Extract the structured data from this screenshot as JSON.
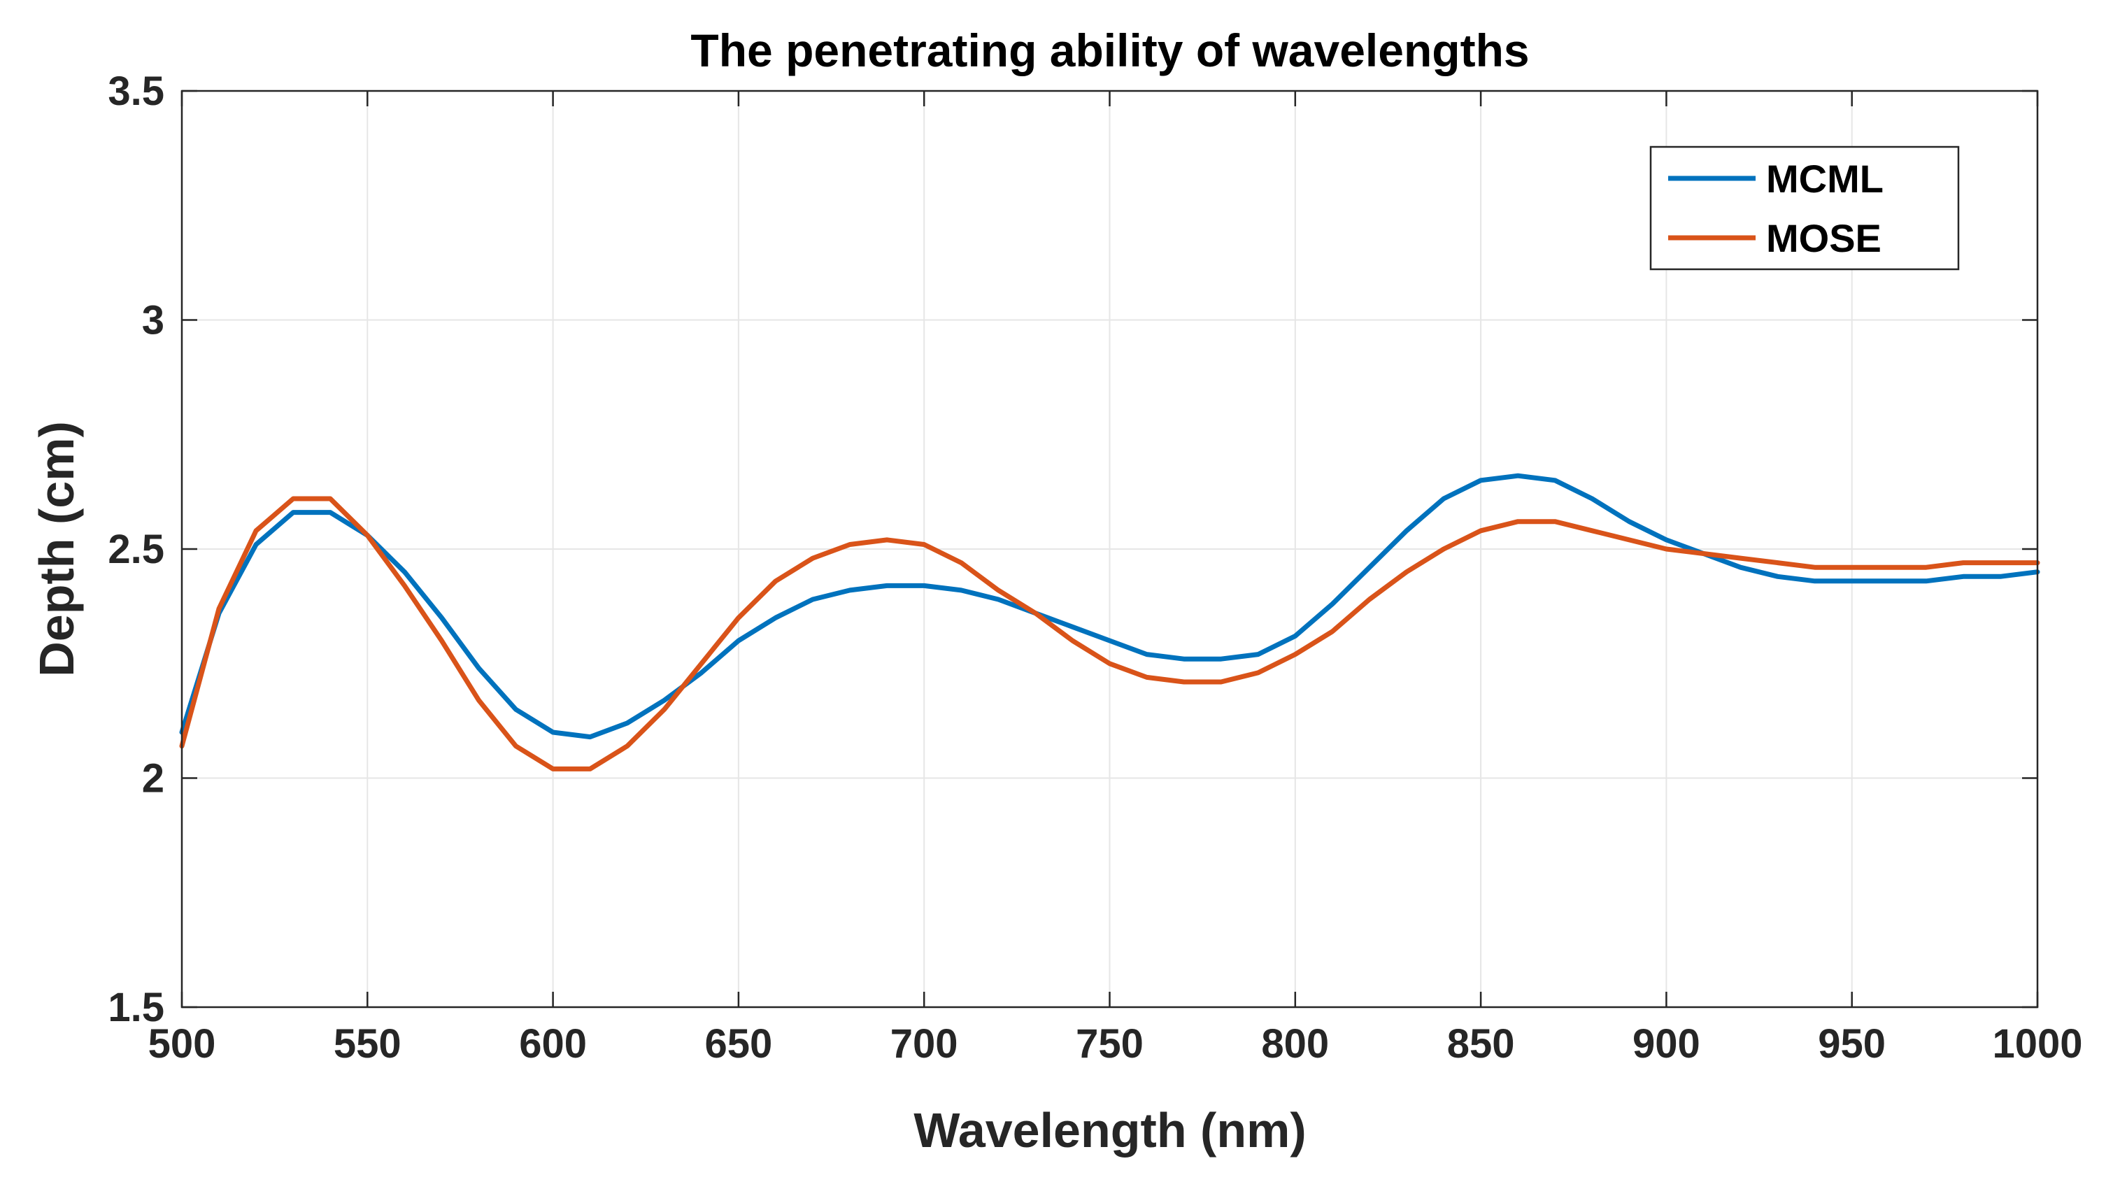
{
  "chart_data": {
    "type": "line",
    "title": "The penetrating ability of wavelengths",
    "xlabel": "Wavelength (nm)",
    "ylabel": "Depth (cm)",
    "xlim": [
      500,
      1000
    ],
    "ylim": [
      1.5,
      3.5
    ],
    "grid": true,
    "legend_position": "top-right",
    "xticks": [
      500,
      550,
      600,
      650,
      700,
      750,
      800,
      850,
      900,
      950,
      1000
    ],
    "xtick_labels": [
      "500",
      "550",
      "600",
      "650",
      "700",
      "750",
      "800",
      "850",
      "900",
      "950",
      "1000"
    ],
    "yticks": [
      1.5,
      2,
      2.5,
      3,
      3.5
    ],
    "ytick_labels": [
      "1.5",
      "2",
      "2.5",
      "3",
      "3.5"
    ],
    "x": [
      500,
      510,
      520,
      530,
      540,
      550,
      560,
      570,
      580,
      590,
      600,
      610,
      620,
      630,
      640,
      650,
      660,
      670,
      680,
      690,
      700,
      710,
      720,
      730,
      740,
      750,
      760,
      770,
      780,
      790,
      800,
      810,
      820,
      830,
      840,
      850,
      860,
      870,
      880,
      890,
      900,
      910,
      920,
      930,
      940,
      950,
      960,
      970,
      980,
      990,
      1000
    ],
    "series": [
      {
        "name": "MCML",
        "color": "#0072BD",
        "values": [
          2.1,
          2.36,
          2.51,
          2.58,
          2.58,
          2.53,
          2.45,
          2.35,
          2.24,
          2.15,
          2.1,
          2.09,
          2.12,
          2.17,
          2.23,
          2.3,
          2.35,
          2.39,
          2.41,
          2.42,
          2.42,
          2.41,
          2.39,
          2.36,
          2.33,
          2.3,
          2.27,
          2.26,
          2.26,
          2.27,
          2.31,
          2.38,
          2.46,
          2.54,
          2.61,
          2.65,
          2.66,
          2.65,
          2.61,
          2.56,
          2.52,
          2.49,
          2.46,
          2.44,
          2.43,
          2.43,
          2.43,
          2.43,
          2.44,
          2.44,
          2.45
        ]
      },
      {
        "name": "MOSE",
        "color": "#D95319",
        "values": [
          2.07,
          2.37,
          2.54,
          2.61,
          2.61,
          2.53,
          2.42,
          2.3,
          2.17,
          2.07,
          2.02,
          2.02,
          2.07,
          2.15,
          2.25,
          2.35,
          2.43,
          2.48,
          2.51,
          2.52,
          2.51,
          2.47,
          2.41,
          2.36,
          2.3,
          2.25,
          2.22,
          2.21,
          2.21,
          2.23,
          2.27,
          2.32,
          2.39,
          2.45,
          2.5,
          2.54,
          2.56,
          2.56,
          2.54,
          2.52,
          2.5,
          2.49,
          2.48,
          2.47,
          2.46,
          2.46,
          2.46,
          2.46,
          2.47,
          2.47,
          2.47
        ]
      }
    ]
  }
}
